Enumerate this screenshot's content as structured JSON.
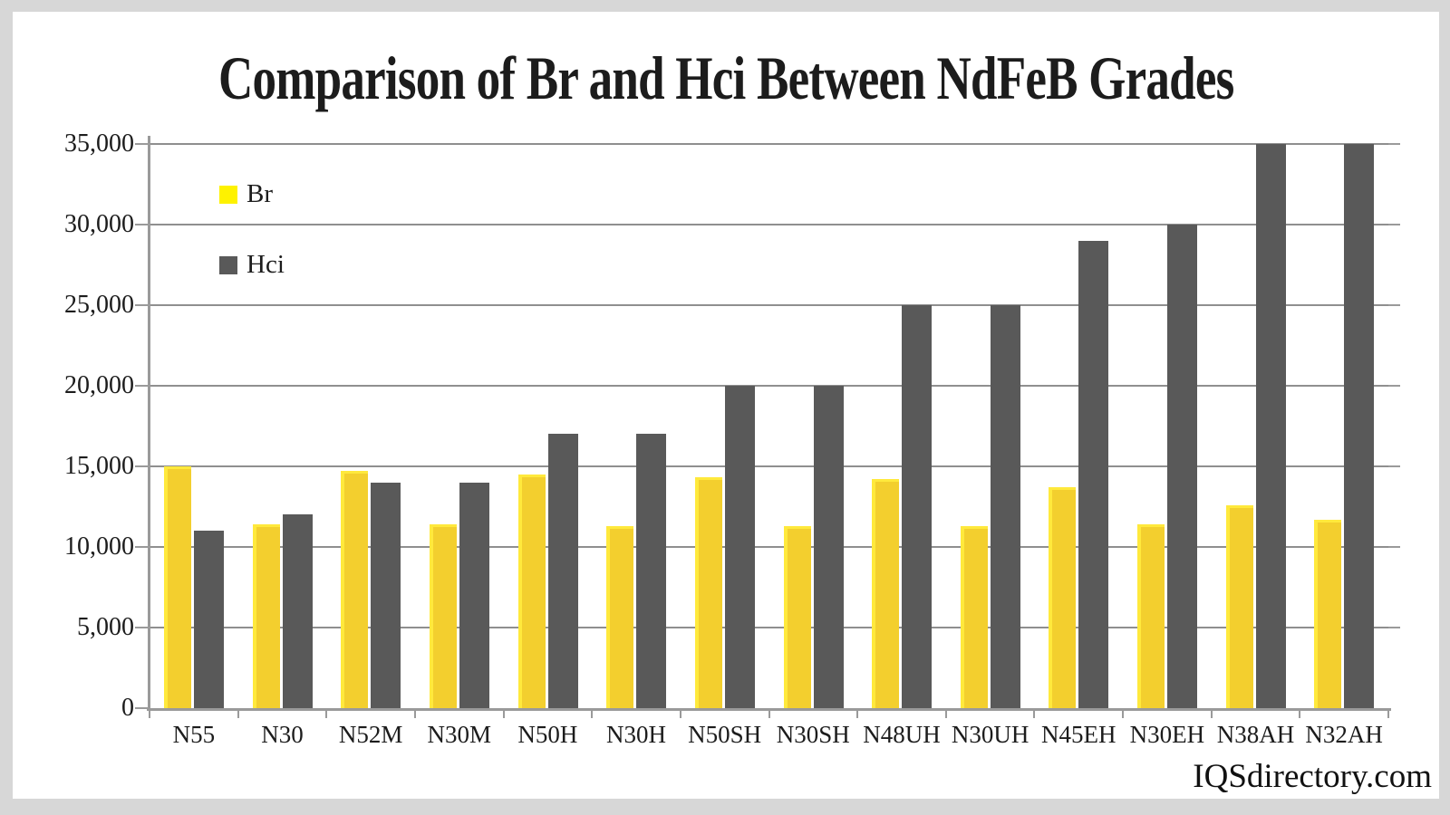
{
  "title": "Comparison of Br and Hci Between NdFeB Grades",
  "watermark": "IQSdirectory.com",
  "colors": {
    "page_background": "#d7d7d7",
    "panel_background": "#ffffff",
    "axis": "#9a9a9a",
    "gridline": "#8f8f8f",
    "text": "#1c1c1c"
  },
  "legend": [
    {
      "label": "Br",
      "swatch_color": "#fef200"
    },
    {
      "label": "Hci",
      "swatch_color": "#595959"
    }
  ],
  "chart_data": {
    "type": "bar",
    "title": "Comparison of Br and Hci Between NdFeB Grades",
    "categories": [
      "N55",
      "N30",
      "N52M",
      "N30M",
      "N50H",
      "N30H",
      "N50SH",
      "N30SH",
      "N48UH",
      "N30UH",
      "N45EH",
      "N30EH",
      "N38AH",
      "N32AH"
    ],
    "series": [
      {
        "name": "Br",
        "color": "#f3cf2e",
        "highlight_color": "#ffe93c",
        "values": [
          15000,
          11400,
          14700,
          11400,
          14500,
          11300,
          14300,
          11300,
          14200,
          11300,
          13700,
          11400,
          12600,
          11700
        ]
      },
      {
        "name": "Hci",
        "color": "#595959",
        "values": [
          11000,
          12000,
          14000,
          14000,
          17000,
          17000,
          20000,
          20000,
          25000,
          25000,
          29000,
          30000,
          35000,
          35000
        ]
      }
    ],
    "ylim": [
      0,
      35000
    ],
    "y_ticks": [
      "0",
      "5,000",
      "10,000",
      "15,000",
      "20,000",
      "25,000",
      "30,000",
      "35,000"
    ],
    "xlabel": "",
    "ylabel": "",
    "grid": true,
    "legend_position": "top-left"
  }
}
